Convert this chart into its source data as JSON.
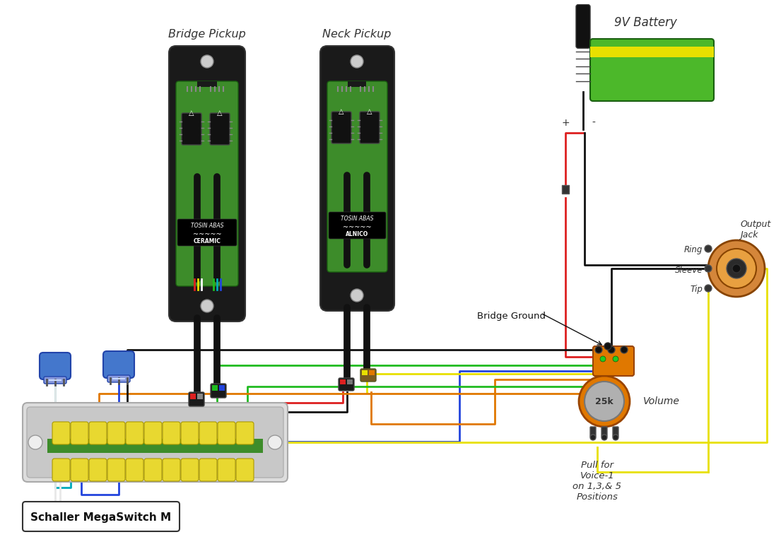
{
  "background_color": "#ffffff",
  "bridge_pickup_label": "Bridge Pickup",
  "neck_pickup_label": "Neck Pickup",
  "battery_label": "9V Battery",
  "switch_label": "Schaller MegaSwitch M",
  "volume_label": "Volume",
  "volume_value": "25k",
  "output_jack_label": "Output\nJack",
  "ring_label": "Ring",
  "sleeve_label": "Sleeve",
  "tip_label": "Tip",
  "bridge_ground_label": "Bridge Ground",
  "pull_label": "Pull for\nVoice-1\non 1,3,& 5\nPositions",
  "plus_label": "+",
  "minus_label": "-",
  "pickup_body_color": "#1a1a1a",
  "pickup_board_color": "#3d8c2a",
  "battery_green": "#4cb82a",
  "battery_yellow": "#e8e000",
  "switch_tab_color": "#e8d830",
  "switch_green_stripe": "#3d8c2a",
  "pot_color": "#e07800",
  "pot_knob_color": "#b0b0b0",
  "jack_outer": "#d4863a",
  "jack_mid": "#e8a040",
  "trimmer_color": "#4477cc",
  "wire_red": "#dd2020",
  "wire_black": "#111111",
  "wire_green": "#20bb20",
  "wire_yellow": "#e8e000",
  "wire_orange": "#e07800",
  "wire_blue": "#2244dd",
  "wire_white": "#e8e8e8",
  "wire_cyan": "#00aabb",
  "figsize": [
    11.05,
    7.77
  ],
  "dpi": 100
}
